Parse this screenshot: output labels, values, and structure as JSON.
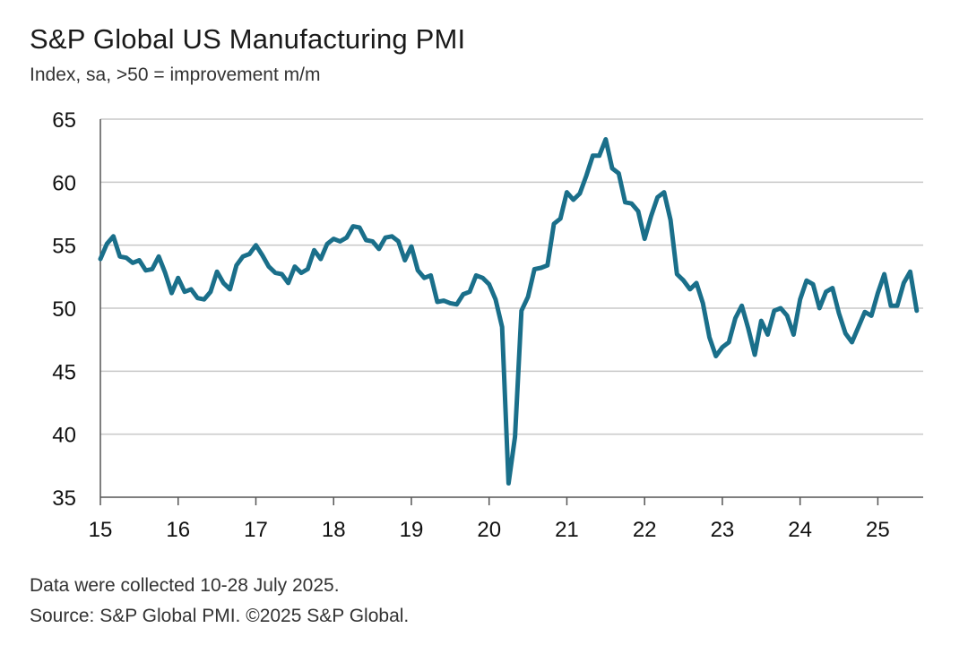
{
  "header": {
    "title": "S&P Global US Manufacturing PMI",
    "subtitle": "Index, sa, >50 = improvement m/m"
  },
  "footer": {
    "note": "Data were collected 10-28 July 2025.",
    "source": "Source: S&P Global PMI. ©2025 S&P Global."
  },
  "colors": {
    "line": "#1a6f8a",
    "grid": "#c8c8c8",
    "axis": "#555555"
  },
  "chart_data": {
    "type": "line",
    "title": "S&P Global US Manufacturing PMI",
    "subtitle": "Index, sa, >50 = improvement m/m",
    "xlabel": "",
    "ylabel": "",
    "ylim": [
      35,
      65
    ],
    "yticks": [
      35,
      40,
      45,
      50,
      55,
      60,
      65
    ],
    "xlim": [
      2015.0,
      2025.5833
    ],
    "xticks": [
      {
        "year": 2015,
        "label": "15"
      },
      {
        "year": 2016,
        "label": "16"
      },
      {
        "year": 2017,
        "label": "17"
      },
      {
        "year": 2018,
        "label": "18"
      },
      {
        "year": 2019,
        "label": "19"
      },
      {
        "year": 2020,
        "label": "20"
      },
      {
        "year": 2021,
        "label": "21"
      },
      {
        "year": 2022,
        "label": "22"
      },
      {
        "year": 2023,
        "label": "23"
      },
      {
        "year": 2024,
        "label": "24"
      },
      {
        "year": 2025,
        "label": "25"
      }
    ],
    "grid": true,
    "series": [
      {
        "start": "2015-01",
        "values": [
          53.9,
          55.1,
          55.7,
          54.1,
          54.0,
          53.6,
          53.8,
          53.0,
          53.1,
          54.1,
          52.8,
          51.2,
          52.4,
          51.3,
          51.5,
          50.8,
          50.7,
          51.3,
          52.9,
          52.0,
          51.5,
          53.4,
          54.1,
          54.3,
          55.0,
          54.2,
          53.3,
          52.8,
          52.7,
          52.0,
          53.3,
          52.8,
          53.1,
          54.6,
          53.9,
          55.1,
          55.5,
          55.3,
          55.6,
          56.5,
          56.4,
          55.4,
          55.3,
          54.7,
          55.6,
          55.7,
          55.3,
          53.8,
          54.9,
          53.0,
          52.4,
          52.6,
          50.5,
          50.6,
          50.4,
          50.3,
          51.1,
          51.3,
          52.6,
          52.4,
          51.9,
          50.7,
          48.5,
          36.1,
          39.8,
          49.8,
          50.9,
          53.1,
          53.2,
          53.4,
          56.7,
          57.1,
          59.2,
          58.6,
          59.1,
          60.5,
          62.1,
          62.1,
          63.4,
          61.1,
          60.7,
          58.4,
          58.3,
          57.7,
          55.5,
          57.3,
          58.8,
          59.2,
          57.0,
          52.7,
          52.2,
          51.5,
          52.0,
          50.4,
          47.7,
          46.2,
          46.9,
          47.3,
          49.2,
          50.2,
          48.4,
          46.3,
          49.0,
          47.9,
          49.8,
          50.0,
          49.4,
          47.9,
          50.7,
          52.2,
          51.9,
          50.0,
          51.3,
          51.6,
          49.6,
          48.0,
          47.3,
          48.5,
          49.7,
          49.4,
          51.2,
          52.7,
          50.2,
          50.2,
          52.0,
          52.9,
          49.8
        ]
      }
    ]
  }
}
